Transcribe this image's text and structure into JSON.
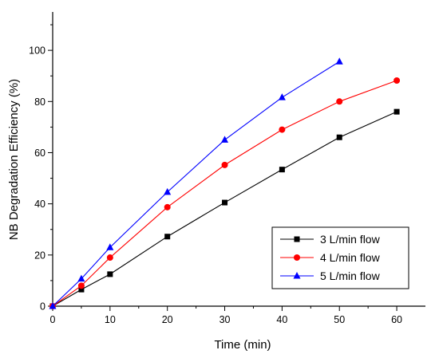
{
  "chart_data": {
    "type": "line",
    "xlabel": "Time (min)",
    "ylabel": "NB Degradation Efficiency (%)",
    "xlim": [
      0,
      65
    ],
    "ylim": [
      0,
      115
    ],
    "x_ticks": [
      0,
      10,
      20,
      30,
      40,
      50,
      60
    ],
    "y_ticks": [
      0,
      20,
      40,
      60,
      80,
      100
    ],
    "grid": false,
    "legend_position": "bottom-right",
    "series": [
      {
        "name": "3 L/min flow",
        "color": "#000000",
        "marker": "square",
        "x": [
          0,
          5,
          10,
          20,
          30,
          40,
          50,
          60
        ],
        "y": [
          0,
          6.5,
          12.5,
          27.2,
          40.5,
          53.4,
          66.0,
          76.0
        ]
      },
      {
        "name": "4 L/min flow",
        "color": "#ff0000",
        "marker": "circle",
        "x": [
          0,
          5,
          10,
          20,
          30,
          40,
          50,
          60
        ],
        "y": [
          0,
          8.0,
          19.0,
          38.7,
          55.2,
          69.0,
          80.0,
          88.2
        ]
      },
      {
        "name": "5 L/min flow",
        "color": "#0000ff",
        "marker": "triangle",
        "x": [
          0,
          5,
          10,
          20,
          30,
          40,
          50
        ],
        "y": [
          0,
          10.7,
          23.0,
          44.6,
          65.0,
          81.6,
          95.6
        ]
      }
    ]
  }
}
